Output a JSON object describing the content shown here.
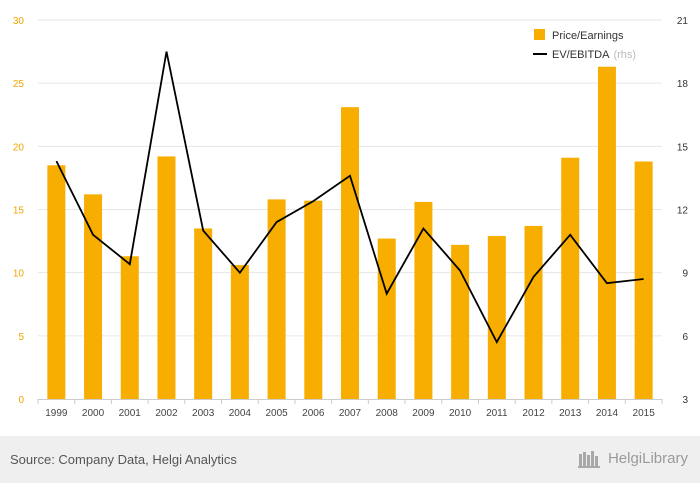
{
  "chart_data": {
    "type": "bar",
    "categories": [
      "1999",
      "2000",
      "2001",
      "2002",
      "2003",
      "2004",
      "2005",
      "2006",
      "2007",
      "2008",
      "2009",
      "2010",
      "2011",
      "2012",
      "2013",
      "2014",
      "2015"
    ],
    "series": [
      {
        "name": "Price/Earnings",
        "type": "bar",
        "axis": "left",
        "color": "#f7ae00",
        "values": [
          18.5,
          16.2,
          11.3,
          19.2,
          13.5,
          10.6,
          15.8,
          15.7,
          23.1,
          12.7,
          15.6,
          12.2,
          12.9,
          13.7,
          19.1,
          26.3,
          18.8
        ]
      },
      {
        "name": "EV/EBITDA",
        "type": "line",
        "axis": "right",
        "color": "#000000",
        "values": [
          14.3,
          10.8,
          9.4,
          19.5,
          11.0,
          9.0,
          11.4,
          12.4,
          13.6,
          8.0,
          11.1,
          9.1,
          5.7,
          8.8,
          10.8,
          8.5,
          8.7
        ]
      }
    ],
    "yleft": {
      "range": [
        0,
        30
      ],
      "ticks": [
        0,
        5,
        10,
        15,
        20,
        25,
        30
      ]
    },
    "yright": {
      "range": [
        3,
        21
      ],
      "ticks": [
        3,
        6,
        9,
        12,
        15,
        18,
        21
      ]
    },
    "grid": true,
    "legend": {
      "placement": "top-right",
      "entries": [
        {
          "label": "Price/Earnings",
          "note": ""
        },
        {
          "label": "EV/EBITDA",
          "note": "(rhs)"
        }
      ]
    }
  },
  "footer": {
    "source": "Source: Company Data, Helgi Analytics",
    "brand": "HelgiLibrary"
  }
}
